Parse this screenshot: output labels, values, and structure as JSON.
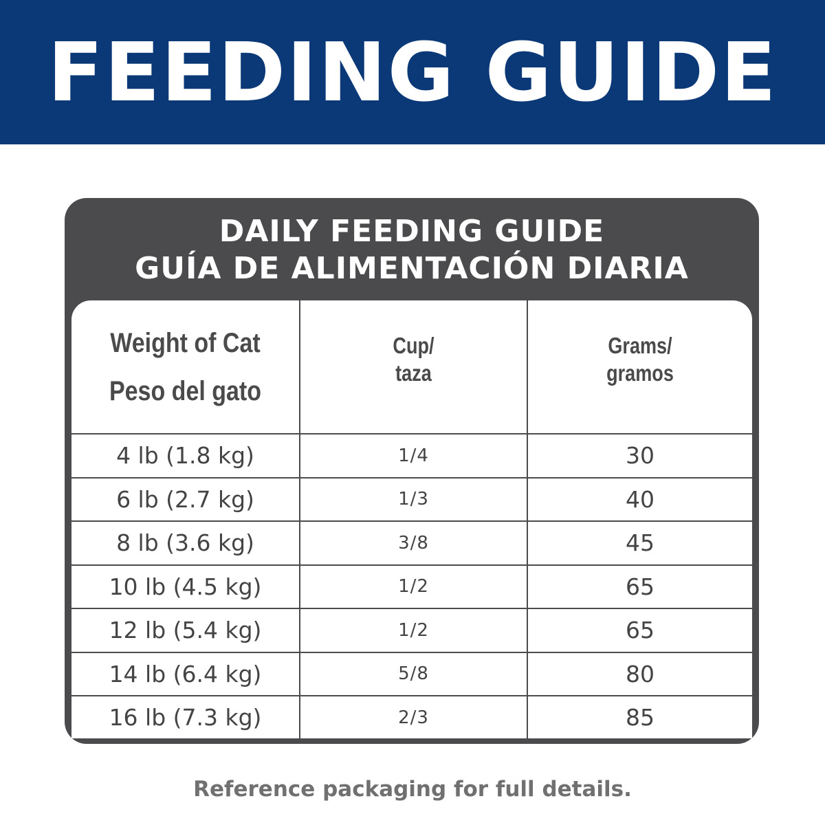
{
  "banner": {
    "title": "FEEDING GUIDE"
  },
  "card": {
    "title_en": "DAILY FEEDING GUIDE",
    "title_es": "GUÍA DE ALIMENTACIÓN DIARIA"
  },
  "table": {
    "headers": [
      {
        "line1": "Weight of Cat",
        "line2": "Peso del gato"
      },
      {
        "line1": "Cup/",
        "line2": "taza"
      },
      {
        "line1": "Grams/",
        "line2": "gramos"
      }
    ],
    "rows": [
      {
        "weight": "4 lb (1.8 kg)",
        "cup": "1/4",
        "grams": "30"
      },
      {
        "weight": "6 lb (2.7 kg)",
        "cup": "1/3",
        "grams": "40"
      },
      {
        "weight": "8 lb (3.6 kg)",
        "cup": "3/8",
        "grams": "45"
      },
      {
        "weight": "10 lb (4.5 kg)",
        "cup": "1/2",
        "grams": "65"
      },
      {
        "weight": "12 lb (5.4 kg)",
        "cup": "1/2",
        "grams": "65"
      },
      {
        "weight": "14 lb (6.4 kg)",
        "cup": "5/8",
        "grams": "80"
      },
      {
        "weight": "16 lb (7.3 kg)",
        "cup": "2/3",
        "grams": "85"
      }
    ]
  },
  "footer": {
    "note": "Reference packaging for full details."
  },
  "colors": {
    "banner": "#0b3877",
    "card": "#4b4b4e",
    "text": "#444444"
  }
}
